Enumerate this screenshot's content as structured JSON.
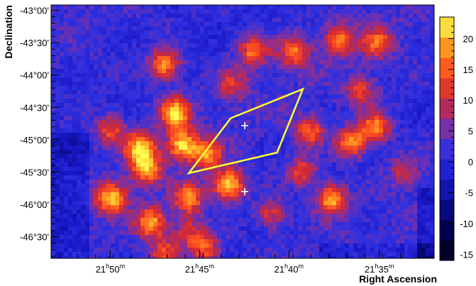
{
  "chart_data": {
    "type": "heatmap",
    "xlabel": "Right Ascension",
    "ylabel": "Declination",
    "x_ticks": [
      {
        "h": "21",
        "m": "50"
      },
      {
        "h": "21",
        "m": "45"
      },
      {
        "h": "21",
        "m": "40"
      },
      {
        "h": "21",
        "m": "35"
      }
    ],
    "y_ticks": [
      "-43°00'",
      "-43°30'",
      "-44°00'",
      "-44°30'",
      "-45°00'",
      "-45°30'",
      "-46°00'",
      "-46°30'"
    ],
    "x_range_minutes": [
      21.888,
      21.532
    ],
    "y_range_deg": [
      -46.833,
      -42.917
    ],
    "colorbar": {
      "ticks": [
        20,
        15,
        10,
        5,
        0,
        -5,
        -10,
        -15
      ],
      "range": [
        -16,
        23.5
      ]
    },
    "colorscale": [
      "#000018",
      "#000048",
      "#0a0a88",
      "#1818c8",
      "#3030e0",
      "#8030a0",
      "#d02838",
      "#ff5020",
      "#ffa020",
      "#ffff50"
    ],
    "region_polygon_ra_dec": [
      [
        21.721,
        -44.667
      ],
      [
        21.654,
        -44.217
      ],
      [
        21.678,
        -45.2
      ],
      [
        21.76,
        -45.517
      ]
    ],
    "region_color": "#ffff33",
    "markers": [
      {
        "ra": 21.708,
        "dec": -44.783,
        "symbol": "+"
      },
      {
        "ra": 21.708,
        "dec": -45.8,
        "symbol": "+"
      }
    ],
    "marker_color": "#ffffff",
    "hotspots": [
      {
        "ra": 21.832,
        "dec": -45.9,
        "value": 20
      },
      {
        "ra": 21.805,
        "dec": -45.117,
        "value": 19
      },
      {
        "ra": 21.799,
        "dec": -45.45,
        "value": 18
      },
      {
        "ra": 21.773,
        "dec": -44.583,
        "value": 21
      },
      {
        "ra": 21.766,
        "dec": -45.083,
        "value": 20
      },
      {
        "ra": 21.723,
        "dec": -45.7,
        "value": 22
      },
      {
        "ra": 21.743,
        "dec": -45.233,
        "value": 15
      },
      {
        "ra": 21.76,
        "dec": -45.917,
        "value": 17
      },
      {
        "ra": 21.795,
        "dec": -46.283,
        "value": 18
      },
      {
        "ra": 21.783,
        "dec": -43.833,
        "value": 18
      },
      {
        "ra": 21.628,
        "dec": -45.917,
        "value": 19
      },
      {
        "ra": 21.609,
        "dec": -45.05,
        "value": 17
      },
      {
        "ra": 21.587,
        "dec": -44.817,
        "value": 17
      },
      {
        "ra": 21.648,
        "dec": -44.867,
        "value": 14
      },
      {
        "ra": 21.7,
        "dec": -43.633,
        "value": 15
      },
      {
        "ra": 21.662,
        "dec": -43.65,
        "value": 14
      },
      {
        "ra": 21.62,
        "dec": -43.45,
        "value": 14
      },
      {
        "ra": 21.585,
        "dec": -43.5,
        "value": 13
      },
      {
        "ra": 21.6,
        "dec": -44.25,
        "value": 11
      },
      {
        "ra": 21.833,
        "dec": -44.85,
        "value": 12
      },
      {
        "ra": 21.745,
        "dec": -46.683,
        "value": 14
      },
      {
        "ra": 21.783,
        "dec": -46.75,
        "value": 12
      },
      {
        "ra": 21.683,
        "dec": -46.15,
        "value": 11
      },
      {
        "ra": 21.655,
        "dec": -45.5,
        "value": 12
      },
      {
        "ra": 21.72,
        "dec": -44.15,
        "value": 10
      },
      {
        "ra": 21.76,
        "dec": -46.433,
        "value": 10
      },
      {
        "ra": 21.56,
        "dec": -45.5,
        "value": 9
      }
    ]
  }
}
